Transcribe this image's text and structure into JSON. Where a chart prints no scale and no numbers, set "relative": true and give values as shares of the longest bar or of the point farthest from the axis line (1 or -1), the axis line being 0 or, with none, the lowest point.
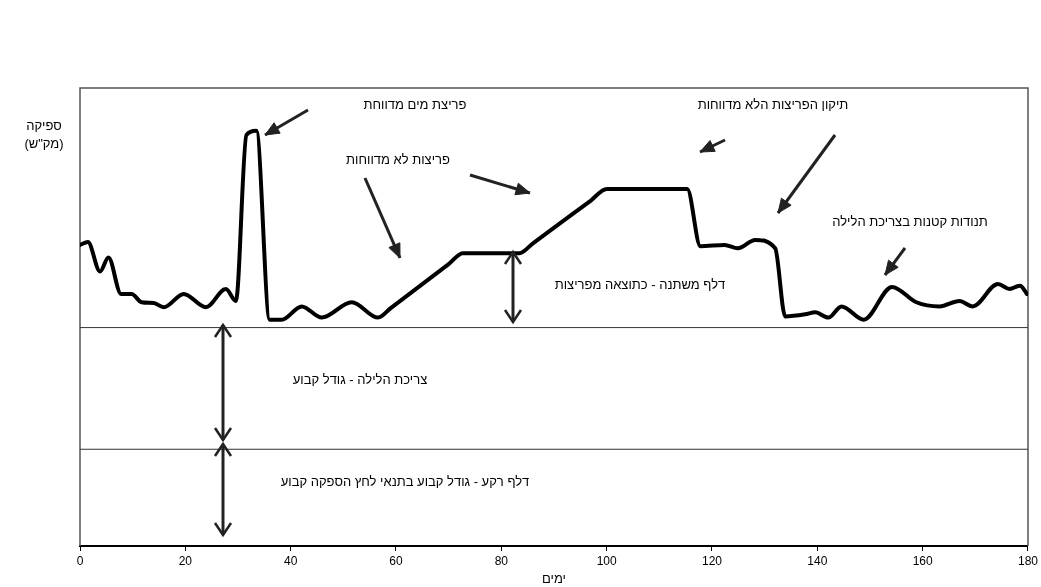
{
  "chart_data": {
    "type": "line",
    "relative": true,
    "xlabel": "ימים",
    "ylabel": "ספיקה\n(מק\"ש)",
    "xlim": [
      0,
      180
    ],
    "xticks": [
      0,
      20,
      40,
      60,
      80,
      100,
      120,
      140,
      160,
      180
    ],
    "grid": false,
    "legend": false,
    "marker": "none",
    "line_style": "solid",
    "series": [
      {
        "color": "#000000",
        "x": [
          0,
          1.5,
          3.8,
          5.4,
          7.8,
          9.8,
          11.7,
          14,
          15.9,
          19.7,
          23.9,
          27.7,
          29.6,
          31.6,
          33.5,
          36,
          38.3,
          42.1,
          45.9,
          51.6,
          56.6,
          59,
          70,
          72.7,
          83.4,
          86,
          97,
          100,
          115.3,
          117.8,
          122.4,
          124.9,
          128.2,
          132,
          133.9,
          137.7,
          139.6,
          142.1,
          144.6,
          148.8,
          154.2,
          158.8,
          163.2,
          167,
          169.5,
          174.3,
          176.5,
          178.5,
          179.8
        ],
        "values": [
          0.725,
          0.732,
          0.661,
          0.695,
          0.607,
          0.607,
          0.587,
          0.585,
          0.575,
          0.607,
          0.575,
          0.619,
          0.59,
          0.99,
          1,
          0.545,
          0.545,
          0.577,
          0.55,
          0.587,
          0.55,
          0.573,
          0.679,
          0.705,
          0.705,
          0.729,
          0.832,
          0.86,
          0.86,
          0.722,
          0.725,
          0.717,
          0.737,
          0.717,
          0.553,
          0.558,
          0.563,
          0.55,
          0.577,
          0.545,
          0.624,
          0.587,
          0.577,
          0.59,
          0.577,
          0.631,
          0.619,
          0.627,
          0.607
        ]
      }
    ],
    "ref_lines": [
      {
        "axis": "y",
        "value": 0.526,
        "color": "#333333"
      },
      {
        "axis": "y",
        "value": 0.233,
        "color": "#333333"
      }
    ],
    "annotations": [
      "פריצת מים מדווחת",
      "פריצות לא מדווחות",
      "תיקון הפריצות הלא מדווחות",
      "תנודות קטנות בצריכת הלילה",
      "דלף משתנה - כתוצאה מפריצות",
      "צריכת הלילה - גודל קבוע",
      "דלף רקע - גודל קבוע בתנאי לחץ הספקה קבוע"
    ]
  }
}
